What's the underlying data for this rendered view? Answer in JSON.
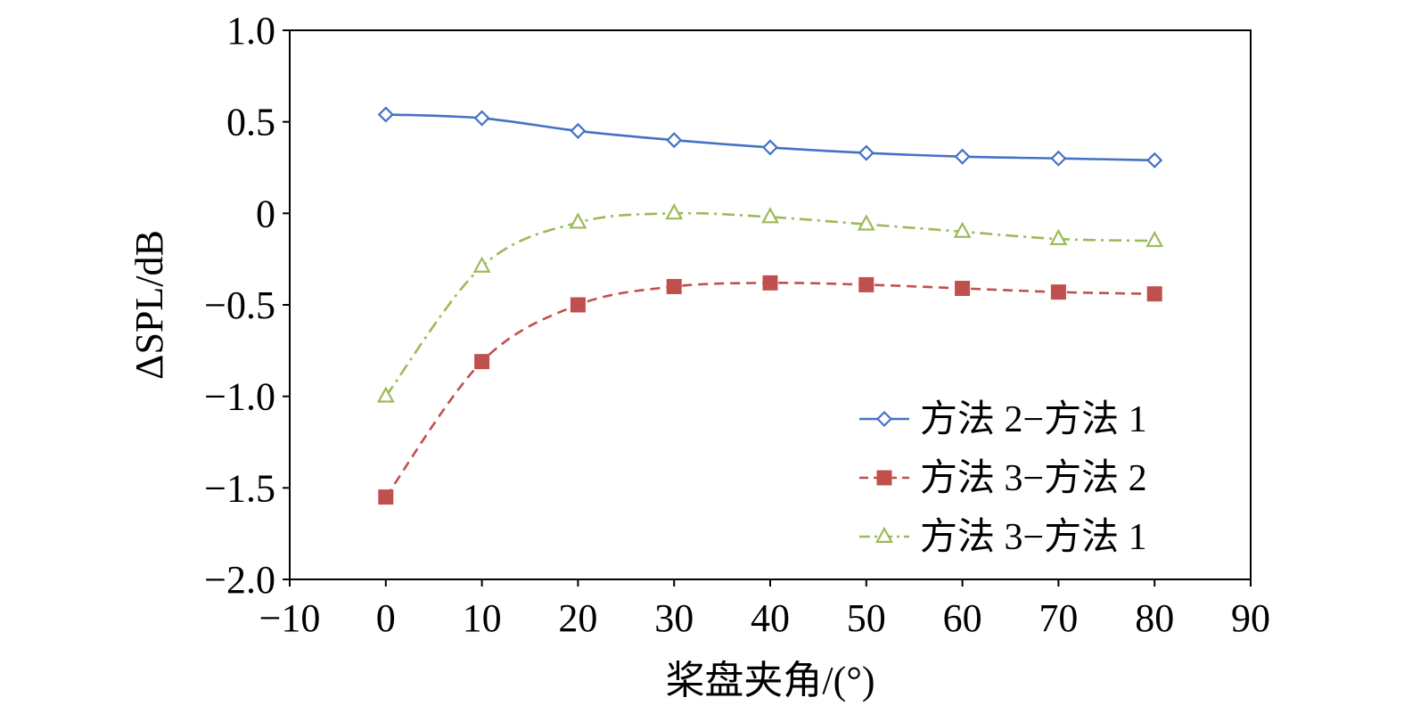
{
  "chart_data": {
    "type": "line",
    "title": "",
    "xlabel": "桨盘夹角/(°)",
    "ylabel": "ΔSPL/dB",
    "xlim": [
      -10,
      90
    ],
    "ylim": [
      -2.0,
      1.0
    ],
    "x_ticks": [
      "−10",
      "0",
      "10",
      "20",
      "30",
      "40",
      "50",
      "60",
      "70",
      "80",
      "90"
    ],
    "y_ticks": [
      "1.0",
      "0.5",
      "0",
      "−0.5",
      "−1.0",
      "−1.5",
      "−2.0"
    ],
    "x_tick_values": [
      -10,
      0,
      10,
      20,
      30,
      40,
      50,
      60,
      70,
      80,
      90
    ],
    "y_tick_values": [
      1.0,
      0.5,
      0,
      -0.5,
      -1.0,
      -1.5,
      -2.0
    ],
    "grid": false,
    "legend_position": "bottom-right",
    "x": [
      0,
      10,
      20,
      30,
      40,
      50,
      60,
      70,
      80
    ],
    "series": [
      {
        "name": "方法 2−方法 1",
        "values": [
          0.54,
          0.52,
          0.45,
          0.4,
          0.36,
          0.33,
          0.31,
          0.3,
          0.29
        ],
        "color": "#4472C4",
        "marker": "diamond-open",
        "line": "solid"
      },
      {
        "name": "方法 3−方法 2",
        "values": [
          -1.55,
          -0.81,
          -0.5,
          -0.4,
          -0.38,
          -0.39,
          -0.41,
          -0.43,
          -0.44
        ],
        "color": "#C0504D",
        "marker": "square-filled",
        "line": "dashed"
      },
      {
        "name": "方法 3−方法 1",
        "values": [
          -1.0,
          -0.29,
          -0.05,
          0.0,
          -0.02,
          -0.06,
          -0.1,
          -0.14,
          -0.15
        ],
        "color": "#9BBB59",
        "marker": "triangle-open",
        "line": "dashdot"
      }
    ]
  }
}
